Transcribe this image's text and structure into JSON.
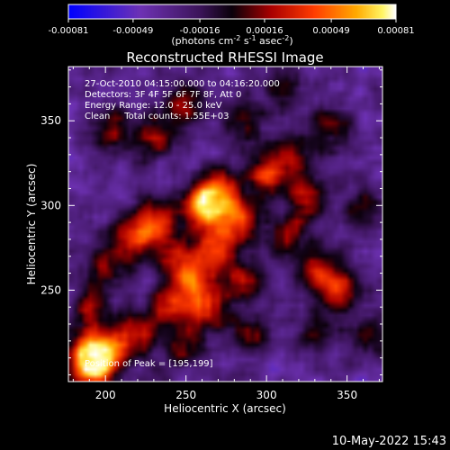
{
  "chart_data": {
    "type": "heatmap",
    "title": "Reconstructed RHESSI Image",
    "xlabel": "Heliocentric X (arcsec)",
    "ylabel": "Heliocentric Y (arcsec)",
    "xlim": [
      177,
      372
    ],
    "ylim": [
      196,
      382
    ],
    "xticks": [
      200,
      250,
      300,
      350
    ],
    "yticks": [
      250,
      300,
      350
    ],
    "grid": false,
    "colorbar": {
      "range": [
        -0.00081,
        0.00081
      ],
      "tick_labels": [
        "-0.00081",
        "-0.00049",
        "-0.00016",
        "0.00016",
        "0.00049",
        "0.00081"
      ],
      "units": "photons cm^-2 s^-1 asec^-2"
    },
    "annotations": [
      "27-Oct-2010 04:15:00.000 to 04:16:20.000",
      "Detectors: 3F 4F 5F 6F 7F 8F, Att 0",
      "Energy Range: 12.0 - 25.0 keV",
      "Clean     Total counts: 1.55E+03"
    ],
    "peak_label": "Position of Peak = [195,199]",
    "peak_position": [
      195,
      199
    ],
    "blobs": [
      {
        "x": 195,
        "y": 205,
        "v": 1.0
      },
      {
        "x": 188,
        "y": 212,
        "v": 0.85
      },
      {
        "x": 205,
        "y": 218,
        "v": 0.55
      },
      {
        "x": 190,
        "y": 240,
        "v": 0.55
      },
      {
        "x": 200,
        "y": 265,
        "v": 0.45
      },
      {
        "x": 218,
        "y": 282,
        "v": 0.65
      },
      {
        "x": 232,
        "y": 290,
        "v": 0.75
      },
      {
        "x": 245,
        "y": 270,
        "v": 0.55
      },
      {
        "x": 260,
        "y": 298,
        "v": 0.95
      },
      {
        "x": 270,
        "y": 308,
        "v": 0.85
      },
      {
        "x": 282,
        "y": 292,
        "v": 0.8
      },
      {
        "x": 268,
        "y": 275,
        "v": 0.7
      },
      {
        "x": 255,
        "y": 255,
        "v": 0.7
      },
      {
        "x": 240,
        "y": 240,
        "v": 0.6
      },
      {
        "x": 262,
        "y": 238,
        "v": 0.65
      },
      {
        "x": 285,
        "y": 255,
        "v": 0.6
      },
      {
        "x": 300,
        "y": 318,
        "v": 0.7
      },
      {
        "x": 315,
        "y": 330,
        "v": 0.55
      },
      {
        "x": 325,
        "y": 305,
        "v": 0.6
      },
      {
        "x": 312,
        "y": 282,
        "v": 0.55
      },
      {
        "x": 330,
        "y": 262,
        "v": 0.55
      },
      {
        "x": 345,
        "y": 250,
        "v": 0.8
      },
      {
        "x": 330,
        "y": 225,
        "v": 0.45
      },
      {
        "x": 290,
        "y": 225,
        "v": 0.45
      },
      {
        "x": 230,
        "y": 340,
        "v": 0.6
      },
      {
        "x": 250,
        "y": 360,
        "v": 0.5
      },
      {
        "x": 285,
        "y": 348,
        "v": 0.45
      },
      {
        "x": 340,
        "y": 345,
        "v": 0.5
      },
      {
        "x": 205,
        "y": 345,
        "v": 0.5
      },
      {
        "x": 310,
        "y": 368,
        "v": 0.4
      },
      {
        "x": 360,
        "y": 300,
        "v": 0.4
      },
      {
        "x": 220,
        "y": 225,
        "v": 0.55
      },
      {
        "x": 250,
        "y": 215,
        "v": 0.45
      },
      {
        "x": 365,
        "y": 220,
        "v": 0.35
      }
    ]
  },
  "footer": {
    "timestamp": "10-May-2022 15:43"
  }
}
